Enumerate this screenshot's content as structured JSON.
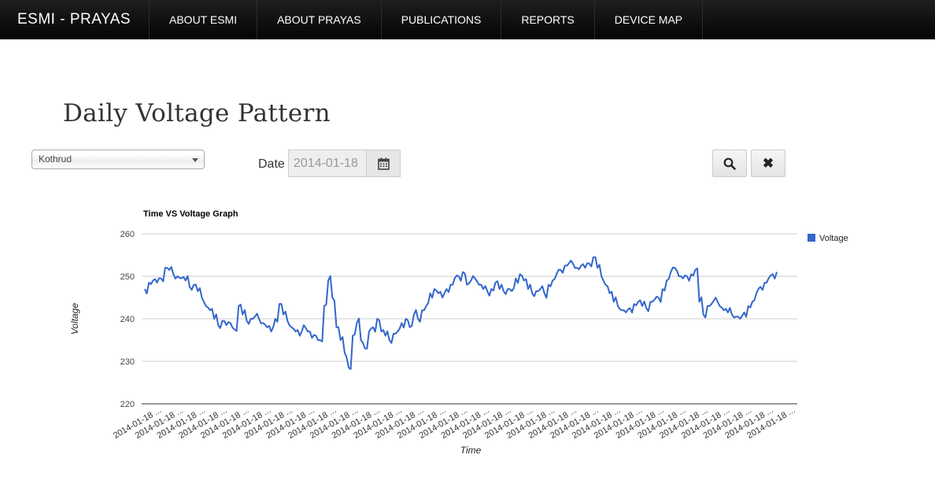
{
  "app": {
    "brand": "ESMI - PRAYAS"
  },
  "nav": {
    "items": [
      {
        "label": "ABOUT ESMI"
      },
      {
        "label": "ABOUT PRAYAS"
      },
      {
        "label": "PUBLICATIONS"
      },
      {
        "label": "REPORTS"
      },
      {
        "label": "DEVICE MAP"
      }
    ]
  },
  "page": {
    "title": "Daily Voltage Pattern"
  },
  "controls": {
    "location_select": {
      "value": "Kothrud"
    },
    "date_label": "Date",
    "date_value": "2014-01-18",
    "calendar_icon": "calendar-icon",
    "search_icon": "search-icon",
    "clear_icon": "close-icon",
    "clear_glyph": "✖"
  },
  "chart_data": {
    "type": "line",
    "title": "Time VS Voltage Graph",
    "xlabel": "Time",
    "ylabel": "Voltage",
    "ylim": [
      220,
      260
    ],
    "yticks": [
      220,
      230,
      240,
      250,
      260
    ],
    "grid": true,
    "legend_position": "right",
    "series": [
      {
        "name": "Voltage",
        "color": "#3366cc",
        "values": [
          247,
          248.5,
          249,
          248.5,
          249.5,
          252,
          251.5,
          250.5,
          250,
          249.5,
          249,
          247.5,
          248,
          246.5,
          245,
          243,
          242,
          240,
          238.5,
          239.5,
          238.5,
          239,
          237.5,
          243,
          241,
          239.5,
          240,
          240.5,
          240,
          239,
          238,
          237,
          240,
          243.5,
          241,
          239.5,
          238,
          237,
          236,
          238.5,
          237,
          235.5,
          236,
          235,
          243,
          249,
          245,
          238,
          235,
          232,
          228.5,
          236,
          239,
          235,
          233,
          237,
          238,
          240,
          237,
          236,
          235,
          236.5,
          237,
          239,
          240,
          238,
          241,
          240,
          242,
          243,
          246,
          247,
          246,
          245,
          247,
          248,
          249.5,
          250,
          251,
          248,
          249,
          249.5,
          248,
          247,
          246.5,
          247,
          248.5,
          247,
          246.5,
          247,
          246.5,
          249.5,
          250.5,
          249,
          247,
          246,
          246.5,
          247,
          246,
          248,
          249,
          250.5,
          251.5,
          252.5,
          253,
          253,
          252,
          252.5,
          252,
          253,
          254.5,
          252,
          250,
          248,
          246,
          244,
          243,
          242,
          241.5,
          242.5,
          243.5,
          244,
          243,
          242.5,
          244,
          244.5,
          245,
          247,
          249,
          251,
          252,
          250,
          249.5,
          250,
          250.5,
          251.5,
          244,
          241,
          243,
          243.5,
          245,
          243,
          242,
          241.5,
          241,
          240.5,
          240,
          241.5,
          243,
          244,
          246,
          247.5,
          248.5,
          249.5,
          250.5,
          251
        ]
      }
    ],
    "x_tick_labels": [
      "2014-01-18 ...",
      "2014-01-18 ...",
      "2014-01-18 ...",
      "2014-01-18 ...",
      "2014-01-18 ...",
      "2014-01-18 ...",
      "2014-01-18 ...",
      "2014-01-18 ...",
      "2014-01-18 ...",
      "2014-01-18 ...",
      "2014-01-18 ...",
      "2014-01-18 ...",
      "2014-01-18 ...",
      "2014-01-18 ...",
      "2014-01-18 ...",
      "2014-01-18 ...",
      "2014-01-18 ...",
      "2014-01-18 ...",
      "2014-01-18 ...",
      "2014-01-18 ...",
      "2014-01-18 ...",
      "2014-01-18 ...",
      "2014-01-18 ...",
      "2014-01-18 ...",
      "2014-01-18 ...",
      "2014-01-18 ...",
      "2014-01-18 ...",
      "2014-01-18 ...",
      "2014-01-18 ...",
      "2014-01-18 ..."
    ]
  }
}
